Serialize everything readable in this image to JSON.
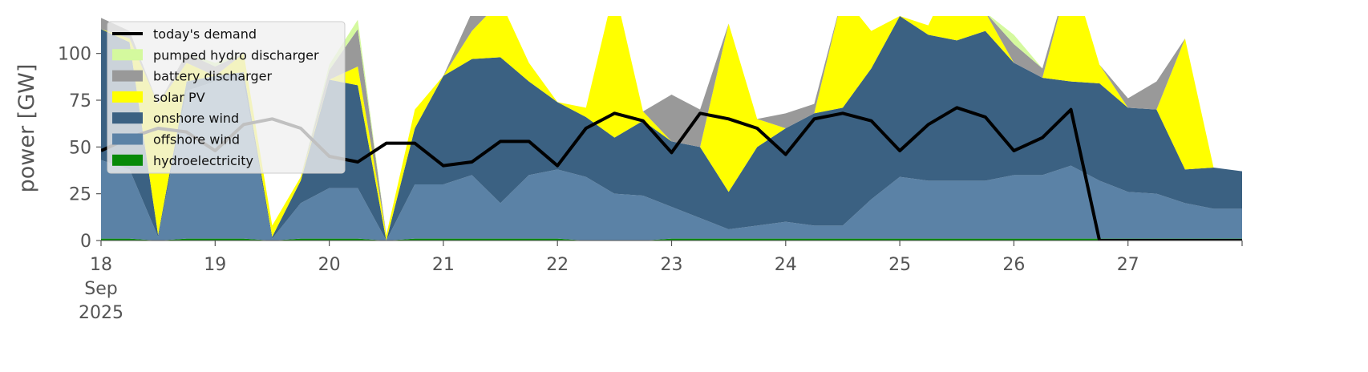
{
  "chart_data": {
    "type": "area",
    "ylabel": "power [GW]",
    "x": [
      "2025-09-18T00:00",
      "2025-09-18T06:00",
      "2025-09-18T12:00",
      "2025-09-18T18:00",
      "2025-09-19T00:00",
      "2025-09-19T06:00",
      "2025-09-19T12:00",
      "2025-09-19T18:00",
      "2025-09-20T00:00",
      "2025-09-20T06:00",
      "2025-09-20T12:00",
      "2025-09-20T18:00",
      "2025-09-21T00:00",
      "2025-09-21T06:00",
      "2025-09-21T12:00",
      "2025-09-21T18:00",
      "2025-09-22T00:00",
      "2025-09-22T06:00",
      "2025-09-22T12:00",
      "2025-09-22T18:00",
      "2025-09-23T00:00",
      "2025-09-23T06:00",
      "2025-09-23T12:00",
      "2025-09-23T18:00",
      "2025-09-24T00:00",
      "2025-09-24T06:00",
      "2025-09-24T12:00",
      "2025-09-24T18:00",
      "2025-09-25T00:00",
      "2025-09-25T06:00",
      "2025-09-25T12:00",
      "2025-09-25T18:00",
      "2025-09-26T00:00",
      "2025-09-26T06:00",
      "2025-09-26T12:00",
      "2025-09-26T18:00",
      "2025-09-27T00:00",
      "2025-09-27T06:00",
      "2025-09-27T12:00",
      "2025-09-27T18:00",
      "2025-09-28T00:00"
    ],
    "xlim": [
      "2025-09-18T00:00",
      "2025-09-28T00:00"
    ],
    "xticks": [
      {
        "value": "2025-09-18",
        "label": "18\nSep\n2025"
      },
      {
        "value": "2025-09-19",
        "label": "19"
      },
      {
        "value": "2025-09-20",
        "label": "20"
      },
      {
        "value": "2025-09-21",
        "label": "21"
      },
      {
        "value": "2025-09-22",
        "label": "22"
      },
      {
        "value": "2025-09-23",
        "label": "23"
      },
      {
        "value": "2025-09-24",
        "label": "24"
      },
      {
        "value": "2025-09-25",
        "label": "25"
      },
      {
        "value": "2025-09-26",
        "label": "26"
      },
      {
        "value": "2025-09-27",
        "label": "27"
      },
      {
        "value": "2025-09-28",
        "label": null
      }
    ],
    "ylim": [
      0,
      120
    ],
    "yticks": [
      0,
      25,
      50,
      75,
      100
    ],
    "legend": "upper left",
    "series": [
      {
        "name": "today's demand",
        "type": "line",
        "color": "#000000",
        "values": [
          48,
          55,
          60,
          58,
          48,
          62,
          65,
          60,
          45,
          42,
          52,
          52,
          40,
          42,
          53,
          53,
          40,
          60,
          68,
          64,
          47,
          68,
          65,
          60,
          46,
          65,
          68,
          64,
          48,
          62,
          71,
          66,
          48,
          55,
          70,
          0,
          0,
          0,
          0,
          0,
          0
        ]
      },
      {
        "name": "pumped hydro discharger",
        "type": "area",
        "color": "#d4f99e",
        "values": [
          0,
          0,
          0,
          0,
          2,
          0,
          0,
          0,
          3,
          5,
          0,
          0,
          0,
          0,
          0,
          0,
          0,
          0,
          0,
          0,
          0,
          0,
          0,
          0,
          0,
          0,
          0,
          0,
          0,
          0,
          0,
          0,
          5,
          0,
          0,
          0,
          0,
          0,
          0,
          0,
          0
        ]
      },
      {
        "name": "battery discharger",
        "type": "area",
        "color": "#999999",
        "values": [
          6,
          4,
          0,
          5,
          5,
          0,
          0,
          0,
          5,
          20,
          0,
          0,
          0,
          10,
          0,
          0,
          0,
          0,
          0,
          0,
          25,
          20,
          0,
          0,
          8,
          5,
          0,
          0,
          0,
          0,
          0,
          0,
          10,
          5,
          0,
          0,
          5,
          15,
          0,
          0,
          0
        ]
      },
      {
        "name": "solar PV",
        "type": "area",
        "color": "#ffff00",
        "values": [
          0,
          2,
          70,
          10,
          0,
          10,
          6,
          2,
          0,
          10,
          3,
          10,
          0,
          15,
          30,
          10,
          0,
          5,
          80,
          5,
          0,
          0,
          90,
          15,
          0,
          0,
          60,
          20,
          0,
          5,
          40,
          10,
          0,
          0,
          60,
          10,
          0,
          0,
          70,
          0,
          0
        ]
      },
      {
        "name": "onshore wind",
        "type": "area",
        "color": "#3b6182",
        "values": [
          70,
          68,
          1,
          5,
          3,
          5,
          1,
          12,
          58,
          55,
          0,
          30,
          58,
          62,
          78,
          50,
          36,
          32,
          30,
          40,
          35,
          38,
          20,
          42,
          50,
          60,
          63,
          70,
          86,
          78,
          75,
          80,
          60,
          52,
          45,
          52,
          45,
          45,
          18,
          22,
          20
        ]
      },
      {
        "name": "offshore wind",
        "type": "area",
        "color": "#5b82a6",
        "values": [
          42,
          37,
          2,
          79,
          84,
          84,
          1,
          19,
          27,
          27,
          0,
          29,
          29,
          34,
          19,
          34,
          37,
          34,
          25,
          24,
          17,
          11,
          5,
          7,
          9,
          7,
          7,
          21,
          33,
          31,
          31,
          31,
          34,
          34,
          39,
          31,
          25,
          24,
          19,
          16,
          16
        ]
      },
      {
        "name": "hydroelectricity",
        "type": "area",
        "color": "#088a08",
        "values": [
          1,
          1,
          0,
          1,
          1,
          1,
          0,
          1,
          1,
          1,
          0,
          1,
          1,
          1,
          1,
          1,
          1,
          0,
          0,
          0,
          1,
          1,
          1,
          1,
          1,
          1,
          1,
          1,
          1,
          1,
          1,
          1,
          1,
          1,
          1,
          1,
          1,
          1,
          1,
          1,
          1
        ]
      }
    ]
  }
}
